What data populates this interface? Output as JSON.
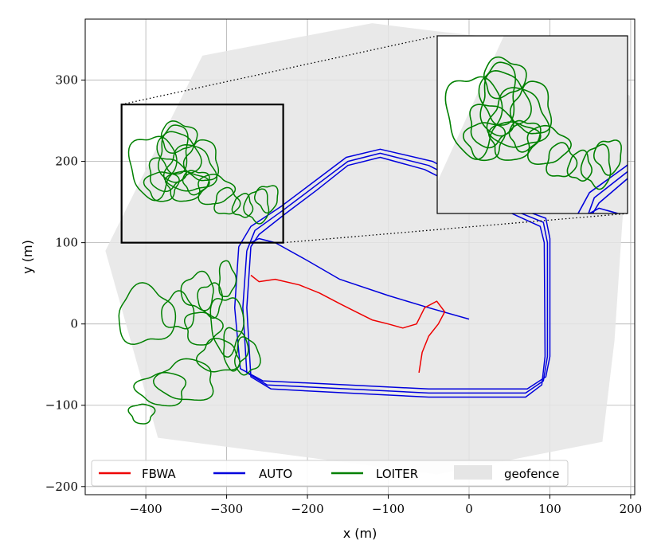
{
  "chart_data": {
    "type": "line",
    "title": "",
    "xlabel": "x (m)",
    "ylabel": "y (m)",
    "xlim": [
      -475,
      205
    ],
    "ylim": [
      -210,
      375
    ],
    "grid": true,
    "legend_position": "bottom",
    "x_ticks": [
      -400,
      -300,
      -200,
      -100,
      0,
      100,
      200
    ],
    "y_ticks": [
      -200,
      -100,
      0,
      100,
      200,
      300
    ],
    "x_tick_labels": [
      "−400",
      "−300",
      "−200",
      "−100",
      "0",
      "100",
      "200"
    ],
    "y_tick_labels": [
      "−200",
      "−100",
      "0",
      "100",
      "200",
      "300"
    ],
    "colors": {
      "FBWA": "#ee0000",
      "AUTO": "#0000dd",
      "LOITER": "#008000",
      "geofence": "#e5e5e5"
    },
    "geofence": [
      [
        -120,
        370
      ],
      [
        -40,
        360
      ],
      [
        100,
        345
      ],
      [
        200,
        280
      ],
      [
        180,
        -20
      ],
      [
        165,
        -145
      ],
      [
        -40,
        -185
      ],
      [
        -385,
        -140
      ],
      [
        -450,
        90
      ],
      [
        -330,
        330
      ]
    ],
    "series": [
      {
        "name": "FBWA",
        "points": [
          [
            -62,
            -60
          ],
          [
            -58,
            -35
          ],
          [
            -50,
            -15
          ],
          [
            -38,
            0
          ],
          [
            -30,
            15
          ],
          [
            -40,
            28
          ],
          [
            -55,
            20
          ],
          [
            -65,
            0
          ],
          [
            -82,
            -5
          ],
          [
            -100,
            0
          ],
          [
            -120,
            5
          ],
          [
            -140,
            15
          ],
          [
            -160,
            25
          ],
          [
            -185,
            38
          ],
          [
            -210,
            48
          ],
          [
            -240,
            55
          ],
          [
            -260,
            52
          ],
          [
            -270,
            60
          ]
        ]
      },
      {
        "name": "AUTO",
        "paths": [
          [
            [
              -275,
              90
            ],
            [
              -280,
              20
            ],
            [
              -275,
              -60
            ],
            [
              -250,
              -75
            ],
            [
              -150,
              -80
            ],
            [
              -50,
              -85
            ],
            [
              70,
              -85
            ],
            [
              92,
              -70
            ],
            [
              97,
              -40
            ],
            [
              97,
              100
            ],
            [
              92,
              125
            ],
            [
              60,
              138
            ],
            [
              -10,
              175
            ],
            [
              -50,
              195
            ],
            [
              -110,
              210
            ],
            [
              -150,
              200
            ],
            [
              -190,
              170
            ],
            [
              -230,
              140
            ],
            [
              -265,
              115
            ],
            [
              -275,
              90
            ]
          ],
          [
            [
              -270,
              95
            ],
            [
              -275,
              20
            ],
            [
              -270,
              -65
            ],
            [
              -245,
              -80
            ],
            [
              -150,
              -85
            ],
            [
              -50,
              -90
            ],
            [
              70,
              -90
            ],
            [
              90,
              -75
            ],
            [
              94,
              -40
            ],
            [
              93,
              100
            ],
            [
              88,
              120
            ],
            [
              55,
              135
            ],
            [
              -15,
              170
            ],
            [
              -55,
              190
            ],
            [
              -110,
              205
            ],
            [
              -150,
              195
            ],
            [
              -188,
              165
            ],
            [
              -228,
              135
            ],
            [
              -260,
              110
            ],
            [
              -270,
              95
            ]
          ],
          [
            [
              -285,
              95
            ],
            [
              -290,
              20
            ],
            [
              -283,
              -55
            ],
            [
              -255,
              -70
            ],
            [
              -150,
              -75
            ],
            [
              -50,
              -80
            ],
            [
              72,
              -80
            ],
            [
              95,
              -65
            ],
            [
              100,
              -40
            ],
            [
              100,
              105
            ],
            [
              95,
              130
            ],
            [
              62,
              142
            ],
            [
              -5,
              178
            ],
            [
              -45,
              200
            ],
            [
              -110,
              215
            ],
            [
              -152,
              205
            ],
            [
              -192,
              175
            ],
            [
              -232,
              145
            ],
            [
              -270,
              120
            ],
            [
              -285,
              95
            ]
          ],
          [
            [
              -270,
              100
            ],
            [
              -260,
              105
            ],
            [
              -240,
              100
            ],
            [
              -200,
              78
            ],
            [
              -160,
              55
            ],
            [
              -100,
              35
            ],
            [
              -50,
              20
            ],
            [
              0,
              6
            ]
          ]
        ]
      },
      {
        "name": "LOITER",
        "loops": [
          [
            -392,
            195,
            28,
            38
          ],
          [
            -375,
            185,
            22,
            20
          ],
          [
            -360,
            205,
            25,
            30
          ],
          [
            -345,
            190,
            30,
            28
          ],
          [
            -330,
            200,
            20,
            25
          ],
          [
            -365,
            215,
            18,
            30
          ],
          [
            -380,
            170,
            20,
            18
          ],
          [
            -350,
            170,
            25,
            18
          ],
          [
            -315,
            165,
            22,
            18
          ],
          [
            -300,
            150,
            15,
            16
          ],
          [
            -280,
            145,
            12,
            14
          ],
          [
            -262,
            145,
            15,
            20
          ],
          [
            -250,
            155,
            14,
            16
          ],
          [
            -338,
            175,
            16,
            14
          ],
          [
            -360,
            230,
            22,
            18
          ],
          [
            -400,
            10,
            35,
            35
          ],
          [
            -360,
            15,
            20,
            22
          ],
          [
            -335,
            40,
            20,
            22
          ],
          [
            -320,
            30,
            15,
            20
          ],
          [
            -300,
            0,
            20,
            35
          ],
          [
            -290,
            -30,
            15,
            25
          ],
          [
            -275,
            -40,
            15,
            22
          ],
          [
            -310,
            -40,
            25,
            20
          ],
          [
            -350,
            -70,
            35,
            25
          ],
          [
            -380,
            -80,
            30,
            20
          ],
          [
            -405,
            -110,
            15,
            12
          ],
          [
            -330,
            -5,
            22,
            20
          ],
          [
            -300,
            55,
            10,
            22
          ]
        ]
      }
    ],
    "inset": {
      "zoom_region": {
        "xlim": [
          -430,
          -230
        ],
        "ylim": [
          100,
          270
        ]
      },
      "legend": false
    }
  }
}
